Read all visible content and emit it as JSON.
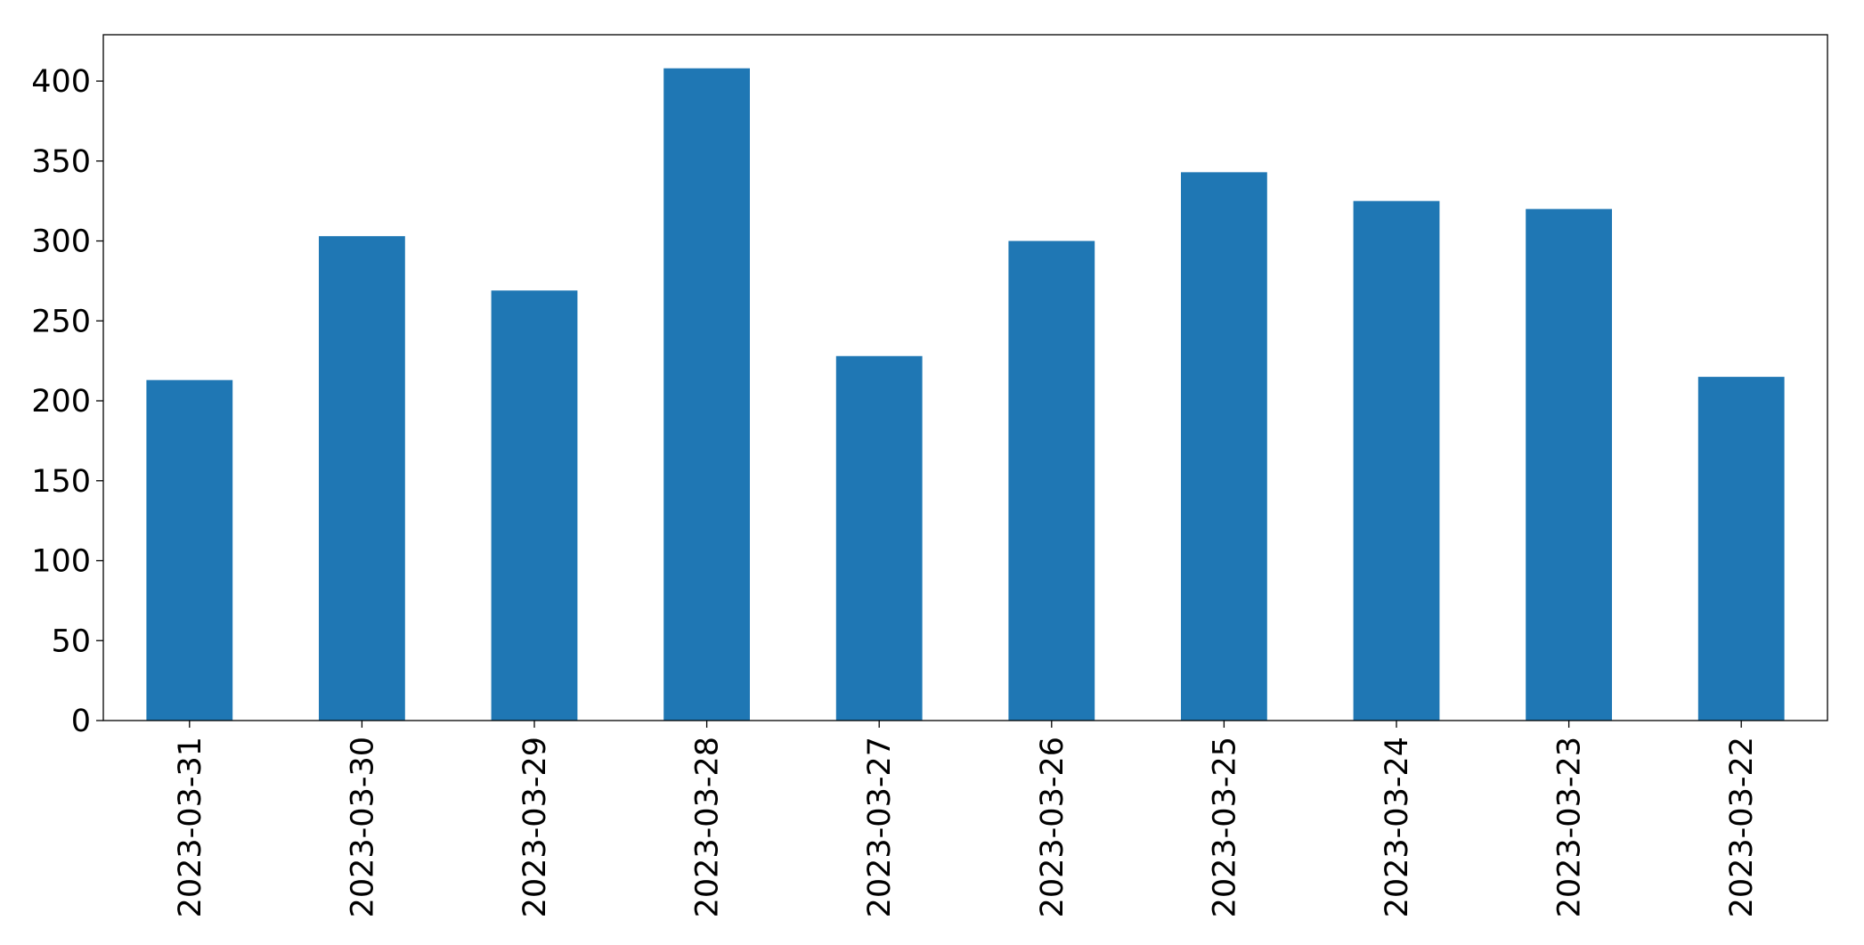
{
  "chart_data": {
    "type": "bar",
    "categories": [
      "2023-03-31",
      "2023-03-30",
      "2023-03-29",
      "2023-03-28",
      "2023-03-27",
      "2023-03-26",
      "2023-03-25",
      "2023-03-24",
      "2023-03-23",
      "2023-03-22"
    ],
    "values": [
      213,
      303,
      269,
      408,
      228,
      300,
      343,
      325,
      320,
      215
    ],
    "color": "#1f77b4",
    "ylim": [
      0,
      429
    ],
    "yticks": [
      0,
      50,
      100,
      150,
      200,
      250,
      300,
      350,
      400
    ],
    "grid": false
  }
}
